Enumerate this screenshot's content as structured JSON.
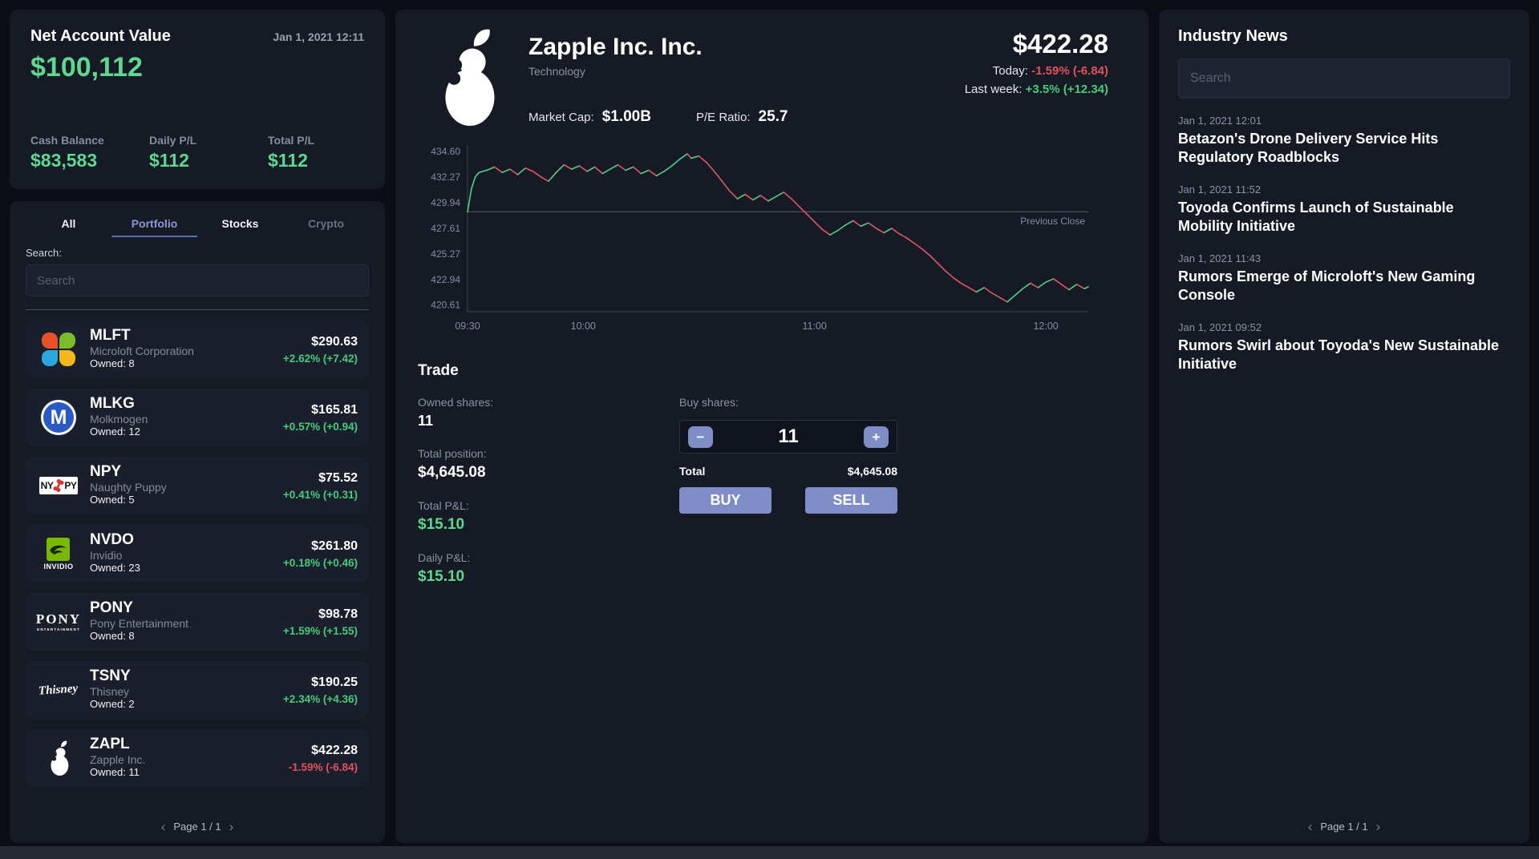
{
  "account": {
    "title": "Net Account Value",
    "value": "$100,112",
    "timestamp": "Jan 1, 2021  12:11",
    "stats": [
      {
        "label": "Cash Balance",
        "value": "$83,583"
      },
      {
        "label": "Daily P/L",
        "value": "$112"
      },
      {
        "label": "Total P/L",
        "value": "$112"
      }
    ]
  },
  "portfolio": {
    "tabs": [
      {
        "label": "All"
      },
      {
        "label": "Portfolio"
      },
      {
        "label": "Stocks"
      },
      {
        "label": "Crypto"
      }
    ],
    "search_label": "Search:",
    "search_placeholder": "Search",
    "stocks": [
      {
        "ticker": "MLFT",
        "company": "Microloft Corporation",
        "owned": "Owned: 8",
        "price": "$290.63",
        "change": "+2.62% (+7.42)",
        "direction": "up",
        "icon": "mlft",
        "logo_text": ""
      },
      {
        "ticker": "MLKG",
        "company": "Molkmogen",
        "owned": "Owned: 12",
        "price": "$165.81",
        "change": "+0.57% (+0.94)",
        "direction": "up",
        "icon": "mlkg",
        "logo_text": "M"
      },
      {
        "ticker": "NPY",
        "company": "Naughty Puppy",
        "owned": "Owned: 5",
        "price": "$75.52",
        "change": "+0.41% (+0.31)",
        "direction": "up",
        "icon": "npy",
        "logo_text": "NY|PY"
      },
      {
        "ticker": "NVDO",
        "company": "Invidio",
        "owned": "Owned: 23",
        "price": "$261.80",
        "change": "+0.18% (+0.46)",
        "direction": "up",
        "icon": "nvdo",
        "logo_text": "INVIDIO"
      },
      {
        "ticker": "PONY",
        "company": "Pony Entertainment",
        "owned": "Owned: 8",
        "price": "$98.78",
        "change": "+1.59% (+1.55)",
        "direction": "up",
        "icon": "pony",
        "logo_text": "PONY|ENTERTAINMENT"
      },
      {
        "ticker": "TSNY",
        "company": "Thisney",
        "owned": "Owned: 2",
        "price": "$190.25",
        "change": "+2.34% (+4.36)",
        "direction": "up",
        "icon": "tsny",
        "logo_text": "Thisney"
      },
      {
        "ticker": "ZAPL",
        "company": "Zapple Inc.",
        "owned": "Owned: 11",
        "price": "$422.28",
        "change": "-1.59% (-6.84)",
        "direction": "down",
        "icon": "zapl",
        "logo_text": ""
      }
    ],
    "pagination": {
      "prev": "‹",
      "text": "Page 1 / 1",
      "next": "›"
    }
  },
  "detail": {
    "title": "Zapple Inc. Inc.",
    "sector": "Technology",
    "market_cap_label": "Market Cap:",
    "market_cap": "$1.00B",
    "pe_label": "P/E Ratio:",
    "pe": "25.7",
    "price": "$422.28",
    "today_label": "Today: ",
    "today_change": "-1.59% (-6.84)",
    "week_label": "Last week: ",
    "week_change": "+3.5% (+12.34)"
  },
  "chart_data": {
    "type": "line",
    "title": "ZAPL intraday price (Jan 1, 2021 09:30 - 12:11)",
    "x_range_minutes": [
      0,
      161
    ],
    "x_ticks": [
      {
        "t": 0,
        "label": "09:30"
      },
      {
        "t": 30,
        "label": "10:00"
      },
      {
        "t": 90,
        "label": "11:00"
      },
      {
        "t": 150,
        "label": "12:00"
      }
    ],
    "y_ticks": [
      "434.60",
      "432.27",
      "429.94",
      "427.61",
      "425.27",
      "422.94",
      "420.61"
    ],
    "y_range": [
      420.61,
      434.6
    ],
    "previous_close": 429.12,
    "previous_close_label": "Previous Close",
    "grid": false,
    "line_colors": {
      "up": "#4ed18a",
      "down": "#e0566a"
    },
    "series": [
      {
        "name": "ZAPL price",
        "points": [
          [
            0,
            429.1
          ],
          [
            1,
            431.2
          ],
          [
            2,
            432.3
          ],
          [
            3,
            432.7
          ],
          [
            5,
            432.9
          ],
          [
            7,
            433.2
          ],
          [
            9,
            432.7
          ],
          [
            11,
            433.0
          ],
          [
            13,
            432.5
          ],
          [
            15,
            433.1
          ],
          [
            17,
            432.8
          ],
          [
            19,
            432.3
          ],
          [
            21,
            431.9
          ],
          [
            23,
            432.7
          ],
          [
            25,
            433.4
          ],
          [
            27,
            433.0
          ],
          [
            29,
            433.3
          ],
          [
            31,
            432.8
          ],
          [
            33,
            433.2
          ],
          [
            35,
            432.6
          ],
          [
            37,
            433.0
          ],
          [
            39,
            433.4
          ],
          [
            41,
            432.9
          ],
          [
            43,
            433.2
          ],
          [
            45,
            432.6
          ],
          [
            47,
            432.9
          ],
          [
            49,
            432.4
          ],
          [
            51,
            432.8
          ],
          [
            53,
            433.3
          ],
          [
            55,
            433.9
          ],
          [
            57,
            434.4
          ],
          [
            58,
            434.0
          ],
          [
            60,
            434.2
          ],
          [
            62,
            433.6
          ],
          [
            64,
            432.8
          ],
          [
            66,
            431.9
          ],
          [
            68,
            431.0
          ],
          [
            70,
            430.3
          ],
          [
            72,
            430.7
          ],
          [
            74,
            430.2
          ],
          [
            76,
            430.6
          ],
          [
            78,
            430.1
          ],
          [
            80,
            430.5
          ],
          [
            82,
            430.9
          ],
          [
            84,
            430.3
          ],
          [
            86,
            429.6
          ],
          [
            88,
            428.9
          ],
          [
            90,
            428.2
          ],
          [
            92,
            427.5
          ],
          [
            94,
            427.0
          ],
          [
            96,
            427.4
          ],
          [
            98,
            427.9
          ],
          [
            100,
            428.3
          ],
          [
            102,
            427.8
          ],
          [
            104,
            428.1
          ],
          [
            106,
            427.6
          ],
          [
            108,
            427.2
          ],
          [
            110,
            427.6
          ],
          [
            112,
            427.1
          ],
          [
            114,
            426.7
          ],
          [
            116,
            426.2
          ],
          [
            118,
            425.7
          ],
          [
            120,
            425.1
          ],
          [
            122,
            424.4
          ],
          [
            124,
            423.7
          ],
          [
            126,
            423.1
          ],
          [
            128,
            422.6
          ],
          [
            130,
            422.2
          ],
          [
            132,
            421.8
          ],
          [
            134,
            422.2
          ],
          [
            136,
            421.7
          ],
          [
            138,
            421.3
          ],
          [
            140,
            420.9
          ],
          [
            142,
            421.5
          ],
          [
            144,
            422.1
          ],
          [
            146,
            422.6
          ],
          [
            148,
            422.2
          ],
          [
            150,
            422.7
          ],
          [
            152,
            423.0
          ],
          [
            154,
            422.5
          ],
          [
            156,
            422.0
          ],
          [
            158,
            422.5
          ],
          [
            160,
            422.1
          ],
          [
            161,
            422.28
          ]
        ]
      }
    ]
  },
  "trade": {
    "title": "Trade",
    "owned_label": "Owned shares:",
    "owned": "11",
    "position_label": "Total position:",
    "position": "$4,645.08",
    "total_pl_label": "Total P&L:",
    "total_pl": "$15.10",
    "daily_pl_label": "Daily P&L:",
    "daily_pl": "$15.10",
    "buy_shares_label": "Buy shares:",
    "minus_label": "−",
    "plus_label": "+",
    "quantity": "11",
    "total_label": "Total",
    "total_value": "$4,645.08",
    "buy_label": "BUY",
    "sell_label": "SELL"
  },
  "news": {
    "title": "Industry News",
    "search_placeholder": "Search",
    "items": [
      {
        "time": "Jan 1, 2021 12:01",
        "headline": "Betazon's Drone Delivery Service Hits Regulatory Roadblocks"
      },
      {
        "time": "Jan 1, 2021 11:52",
        "headline": "Toyoda Confirms Launch of Sustainable Mobility Initiative"
      },
      {
        "time": "Jan 1, 2021 11:43",
        "headline": "Rumors Emerge of Microloft's New Gaming Console"
      },
      {
        "time": "Jan 1, 2021 09:52",
        "headline": "Rumors Swirl about Toyoda's New Sustainable Initiative"
      }
    ],
    "pagination": {
      "prev": "‹",
      "text": "Page 1 / 1",
      "next": "›"
    }
  },
  "colors": {
    "page_bg": "#0b0e15",
    "panel_bg": "#151a25",
    "row_bg": "#1a1f2b",
    "accent_green": "#5fd78e",
    "change_green": "#46ca7d",
    "change_red": "#e0525e",
    "button_blue": "#7e8dc5",
    "active_tab": "#8a99d0"
  }
}
